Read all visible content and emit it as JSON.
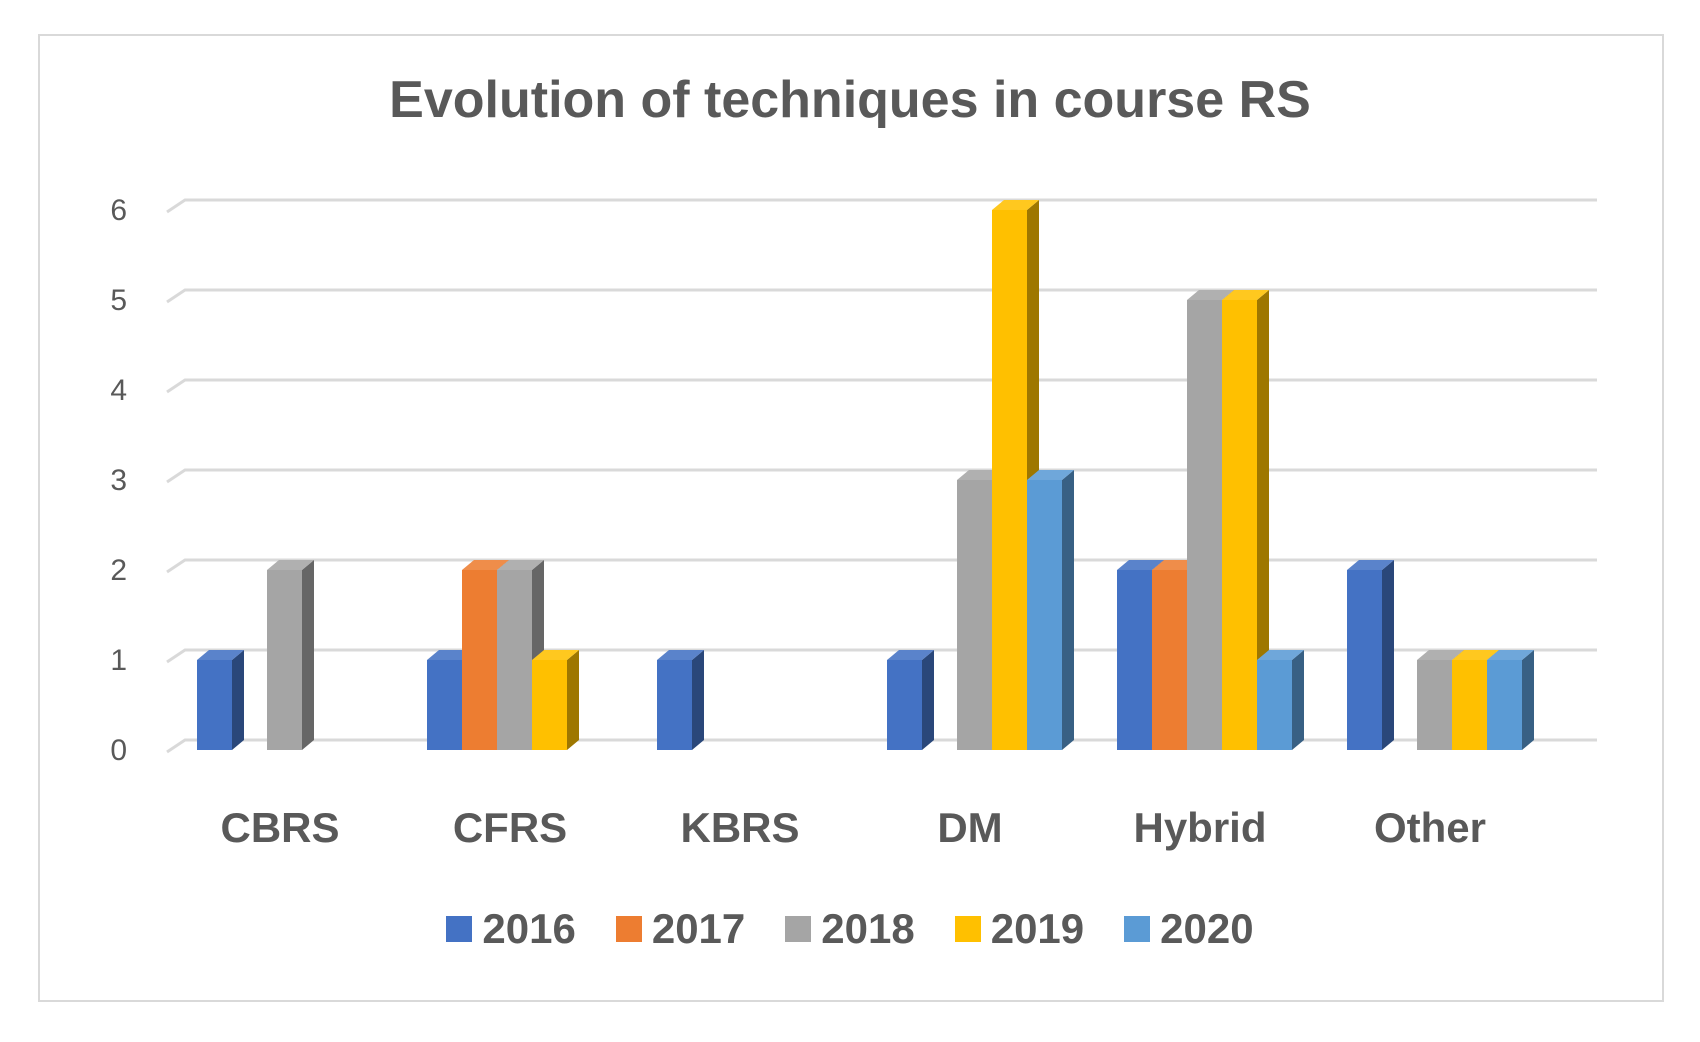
{
  "chart_data": {
    "type": "bar",
    "title": "Evolution of techniques in course RS",
    "categories": [
      "CBRS",
      "CFRS",
      "KBRS",
      "DM",
      "Hybrid",
      "Other"
    ],
    "series": [
      {
        "name": "2016",
        "color": "#4472C4",
        "values": [
          1,
          1,
          1,
          1,
          2,
          2
        ]
      },
      {
        "name": "2017",
        "color": "#ED7D31",
        "values": [
          0,
          2,
          0,
          0,
          2,
          0
        ]
      },
      {
        "name": "2018",
        "color": "#A5A5A5",
        "values": [
          2,
          2,
          0,
          3,
          5,
          1
        ]
      },
      {
        "name": "2019",
        "color": "#FFC000",
        "values": [
          0,
          1,
          0,
          6,
          5,
          1
        ]
      },
      {
        "name": "2020",
        "color": "#5B9BD5",
        "values": [
          0,
          0,
          0,
          3,
          1,
          1
        ]
      }
    ],
    "yticks": [
      "0",
      "1",
      "2",
      "3",
      "4",
      "5",
      "6"
    ],
    "ylim": [
      0,
      6
    ],
    "xlabel": "",
    "ylabel": "",
    "legend_position": "bottom",
    "grid": true
  }
}
